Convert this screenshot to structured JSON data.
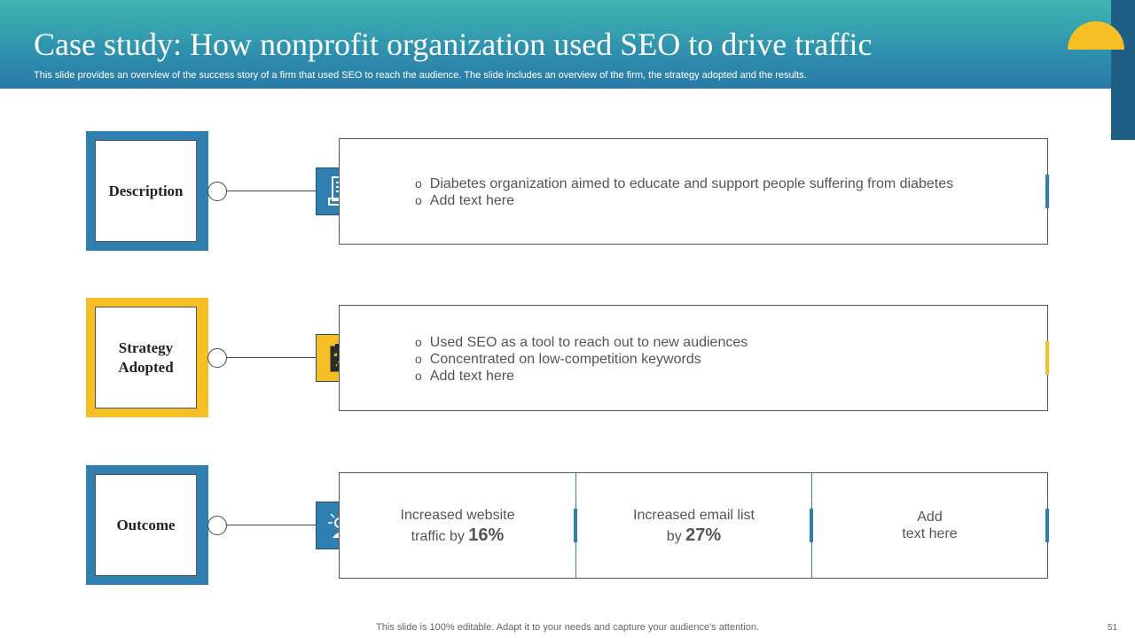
{
  "header": {
    "title": "Case study: How nonprofit organization used SEO to drive traffic",
    "subtitle": "This slide provides an overview of the success story of a firm that used SEO to reach the audience. The slide includes an overview of the firm, the strategy adopted and the results."
  },
  "colors": {
    "blue": "#2f7fb0",
    "yellow": "#f6bf26",
    "teal": "#3fb6b0"
  },
  "rows": {
    "description": {
      "label": "Description",
      "icon": "document-icon",
      "bullets": [
        "Diabetes organization aimed to educate and support people suffering from diabetes",
        "Add text here"
      ]
    },
    "strategy": {
      "label_line1": "Strategy",
      "label_line2": "Adopted",
      "icon": "clipboard-strategy-icon",
      "bullets": [
        "Used SEO as a tool to reach out to new audiences",
        "Concentrated on low-competition keywords",
        "Add text here"
      ]
    },
    "outcome": {
      "label": "Outcome",
      "icon": "network-person-icon",
      "cells": [
        {
          "line1": "Increased website",
          "line2_prefix": "traffic by",
          "value": "16%"
        },
        {
          "line1": "Increased email list",
          "line2_prefix": "by",
          "value": "27%"
        },
        {
          "line1": "Add",
          "line2": "text here"
        }
      ]
    }
  },
  "bullet_mark": "o",
  "footer": {
    "text": "This slide is 100% editable. Adapt it to your needs and capture your audience's attention.",
    "page": "51"
  }
}
